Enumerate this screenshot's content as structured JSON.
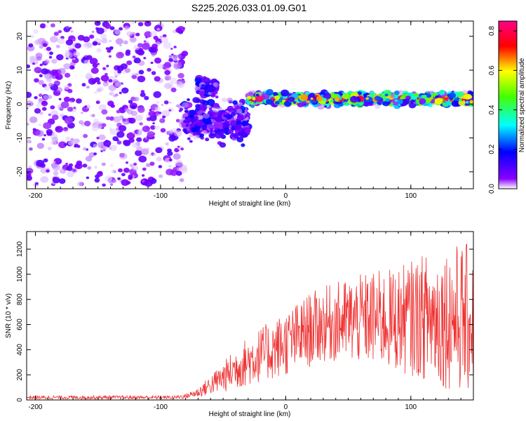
{
  "title": "S225.2026.033.01.09.G01",
  "chart_data": [
    {
      "type": "heatmap",
      "xlabel": "Height of straight line (km)",
      "ylabel": "Frequency (Hz)",
      "xlim": [
        -207,
        150
      ],
      "ylim": [
        -25,
        24.5
      ],
      "xticks": [
        -200,
        -100,
        0,
        100
      ],
      "yticks": [
        -20,
        -10,
        0,
        10,
        20
      ],
      "xtick_labels": [
        "-200",
        "-100",
        "0",
        "100"
      ],
      "ytick_labels": [
        "-20",
        "-10",
        "0",
        "10",
        "20"
      ],
      "colorbar": {
        "label": "Normalized spectral amplitude",
        "range": [
          0.0,
          0.85
        ],
        "ticks": [
          0.0,
          0.2,
          0.4,
          0.6,
          0.8
        ],
        "tick_labels": [
          "0.0",
          "0.2",
          "0.4",
          "0.6",
          "0.8"
        ]
      },
      "regions": [
        {
          "x": [
            -207,
            -80
          ],
          "freq_center": 0,
          "freq_spread": 24,
          "amplitude": 0.1
        },
        {
          "x": [
            -82,
            -30
          ],
          "freq_center": -5,
          "freq_spread": 7,
          "amplitude": 0.15
        },
        {
          "x": [
            -70,
            -55
          ],
          "freq_center": 5,
          "freq_spread": 3,
          "amplitude": 0.15
        },
        {
          "x": [
            -30,
            150
          ],
          "freq_center": 1.5,
          "freq_spread": 2,
          "amplitude": 0.5
        }
      ]
    },
    {
      "type": "line",
      "xlabel": "Height of straight line (km)",
      "ylabel": "SNR (10 * v/v)",
      "xlim": [
        -207,
        150
      ],
      "ylim": [
        0,
        1340
      ],
      "xticks": [
        -200,
        -100,
        0,
        100
      ],
      "yticks": [
        0,
        200,
        400,
        600,
        800,
        1000,
        1200
      ],
      "xtick_labels": [
        "-200",
        "-100",
        "0",
        "100"
      ],
      "ytick_labels": [
        "0",
        "200",
        "400",
        "600",
        "800",
        "1000",
        "1200"
      ],
      "color": "#ee3333",
      "series": [
        {
          "x": [
            -207,
            -90,
            -80,
            -70,
            -60,
            -50,
            -40,
            -30,
            -20,
            -10,
            0,
            10,
            20,
            30,
            40,
            50,
            60,
            70,
            80,
            90,
            100,
            110,
            120,
            130,
            140,
            150
          ],
          "y": [
            20,
            20,
            30,
            60,
            120,
            180,
            250,
            310,
            360,
            400,
            450,
            500,
            560,
            600,
            620,
            630,
            640,
            650,
            640,
            640,
            650,
            660,
            660,
            660,
            650,
            640
          ],
          "spread": [
            15,
            15,
            20,
            40,
            80,
            120,
            170,
            200,
            220,
            240,
            260,
            280,
            300,
            300,
            320,
            340,
            360,
            380,
            400,
            420,
            460,
            500,
            540,
            580,
            600,
            600
          ]
        }
      ]
    }
  ]
}
